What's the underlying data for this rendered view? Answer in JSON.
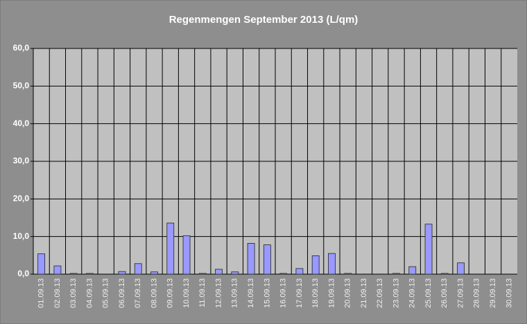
{
  "chart_data": {
    "type": "bar",
    "title": "Regenmengen September 2013 (L/qm)",
    "categories": [
      "01.09.13",
      "02.09.13",
      "03.09.13",
      "04.09.13",
      "05.09.13",
      "06.09.13",
      "07.09.13",
      "08.09.13",
      "09.09.13",
      "10.09.13",
      "11.09.13",
      "12.09.13",
      "13.09.13",
      "14.09.13",
      "15.09.13",
      "16.09.13",
      "17.09.13",
      "18.09.13",
      "19.09.13",
      "20.09.13",
      "21.09.13",
      "22.09.13",
      "23.09.13",
      "24.09.13",
      "25.09.13",
      "26.09.13",
      "27.09.13",
      "28.09.13",
      "29.09.13",
      "30.09.13"
    ],
    "values": [
      5.4,
      2.2,
      0.2,
      0.2,
      0,
      0.7,
      2.8,
      0.6,
      13.6,
      10.2,
      0.2,
      1.3,
      0.6,
      8.2,
      7.8,
      0.2,
      1.5,
      4.9,
      5.5,
      0.2,
      0,
      0,
      0.2,
      2.0,
      13.3,
      0.2,
      3.0,
      0,
      0,
      0
    ],
    "color": "#9999ff",
    "ylim": [
      0,
      60
    ],
    "yticks": [
      {
        "value": 0,
        "label": "0,0"
      },
      {
        "value": 10,
        "label": "10,0"
      },
      {
        "value": 20,
        "label": "20,0"
      },
      {
        "value": 30,
        "label": "30,0"
      },
      {
        "value": 40,
        "label": "40,0"
      },
      {
        "value": 50,
        "label": "50,0"
      },
      {
        "value": 60,
        "label": "60,0"
      }
    ],
    "grid": true
  }
}
